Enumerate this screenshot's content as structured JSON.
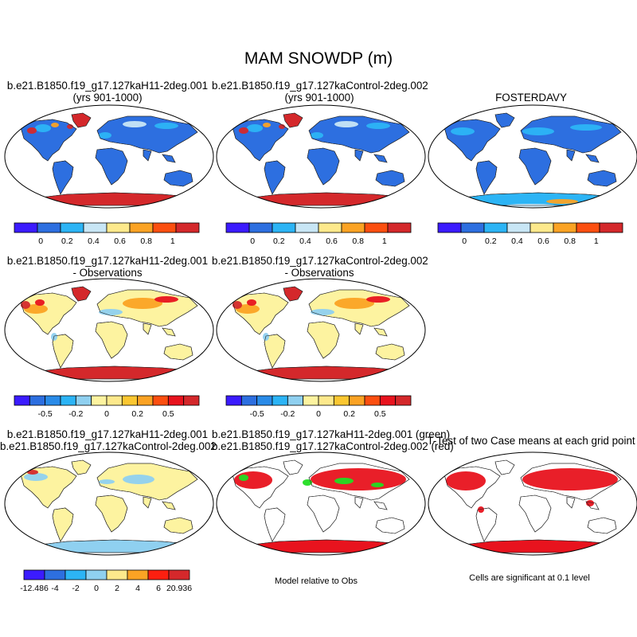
{
  "figure": {
    "title": "MAM SNOWDP (m)"
  },
  "panels": [
    {
      "title": "b.e21.B1850.f19_g17.127kaH11-2deg.001\n(yrs 901-1000)"
    },
    {
      "title": "b.e21.B1850.f19_g17.127kaControl-2deg.002\n(yrs 901-1000)"
    },
    {
      "title": "FOSTERDAVY"
    },
    {
      "title": "b.e21.B1850.f19_g17.127kaH11-2deg.001\n- Observations"
    },
    {
      "title": "b.e21.B1850.f19_g17.127kaControl-2deg.002\n- Observations"
    },
    {
      "title": "b.e21.B1850.f19_g17.127kaH11-2deg.001\nb.e21.B1850.f19_g17.127kaControl-2deg.002"
    },
    {
      "title": "b.e21.B1850.f19_g17.127kaH11-2deg.001 (green)\nb.e21.B1850.f19_g17.127kaControl-2deg.002 (red)"
    },
    {
      "title": "T-Test of two Case means at each grid point"
    }
  ],
  "notes": {
    "model_relative": "Model relative to Obs",
    "significance": "Cells are significant at 0.1 level"
  },
  "chart_data": [
    {
      "type": "heatmap",
      "map": "global snow depth",
      "colorbar": {
        "colors": [
          "#3b1bff",
          "#2d6fe0",
          "#2cb4f5",
          "#c8e6f5",
          "#fde98c",
          "#fba324",
          "#fc4f10",
          "#d4282b"
        ],
        "tick_labels": [
          "0",
          "0.2",
          "0.4",
          "0.6",
          "0.8",
          "1"
        ]
      }
    },
    {
      "type": "heatmap",
      "map": "difference from observations",
      "colorbar": {
        "colors": [
          "#3b1bff",
          "#2d6fe0",
          "#2a8be8",
          "#2cb4f5",
          "#8fd0f0",
          "#fdf3a0",
          "#fde98c",
          "#fbc731",
          "#fba324",
          "#fc4f10",
          "#e8131e",
          "#d4282b"
        ],
        "tick_labels": [
          "-0.5",
          "-0.2",
          "0",
          "0.2",
          "0.5"
        ]
      }
    },
    {
      "type": "heatmap",
      "map": "case difference",
      "colorbar": {
        "colors": [
          "#3b1bff",
          "#2d6fe0",
          "#2cb4f5",
          "#8fd0f0",
          "#fde98c",
          "#fba324",
          "#fc1f10",
          "#d4282b"
        ],
        "tick_labels": [
          "-12.486",
          "-4",
          "-2",
          "0",
          "2",
          "4",
          "6",
          "20.936"
        ]
      }
    }
  ]
}
